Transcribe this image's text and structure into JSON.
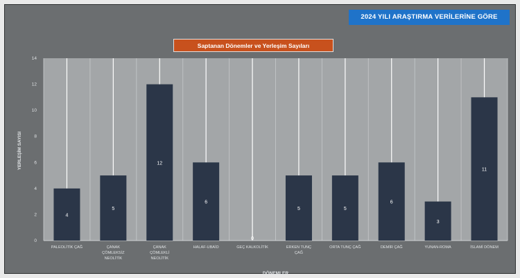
{
  "header": {
    "badge": "2024 YILI ARAŞTIRMA VERİLERİNE GÖRE"
  },
  "chart_data": {
    "type": "bar",
    "title": "Saptanan Dönemler ve Yerleşim Sayıları",
    "xlabel": "DÖNEMLER",
    "ylabel": "YERLEŞİM SAYISI",
    "ylim": [
      0,
      14
    ],
    "yticks": [
      0,
      2,
      4,
      6,
      8,
      10,
      12,
      14
    ],
    "grid": "vertical",
    "categories": [
      [
        "PALEOLİTİK ÇAĞ"
      ],
      [
        "ÇANAK",
        "ÇÖMLEKSİZ",
        "NEOLİTİK"
      ],
      [
        "ÇANAK",
        "ÇÖMLEKLİ",
        "NEOLİTİK"
      ],
      [
        "HALAF-UBAİD"
      ],
      [
        "GEÇ KALKOLİTİK"
      ],
      [
        "ERKEN TUNÇ",
        "ÇAĞ"
      ],
      [
        "ORTA TUNÇ ÇAĞ"
      ],
      [
        "DEMİR ÇAĞ"
      ],
      [
        "YUNAN-ROMA"
      ],
      [
        "İSLAMİ DÖNEM"
      ]
    ],
    "values": [
      4,
      5,
      12,
      6,
      0,
      5,
      5,
      6,
      3,
      11
    ],
    "bar_color": "#2b3648",
    "label_color": "#ffffff"
  }
}
